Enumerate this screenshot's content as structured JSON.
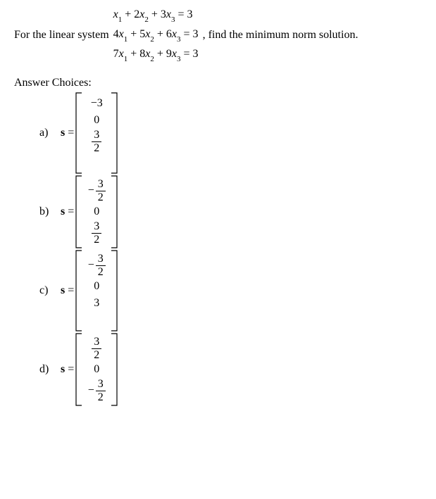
{
  "question": {
    "left_text": "For the linear system ",
    "right_text": ", find the minimum norm solution.",
    "equations": [
      {
        "vars": [
          "x",
          "x",
          "x"
        ],
        "subs": [
          "1",
          "2",
          "3"
        ],
        "coeffs_raw": "x₁ + 2x₂ + 3x₃ = 3",
        "c1": "",
        "c2": "+ 2",
        "c3": "+ 3",
        "rhs": "3"
      },
      {
        "vars": [
          "x",
          "x",
          "x"
        ],
        "subs": [
          "1",
          "2",
          "3"
        ],
        "coeffs_raw": "4x₁ + 5x₂ + 6x₃ = 3",
        "c1": "4",
        "c2": "+ 5",
        "c3": "+ 6",
        "rhs": "3"
      },
      {
        "vars": [
          "x",
          "x",
          "x"
        ],
        "subs": [
          "1",
          "2",
          "3"
        ],
        "coeffs_raw": "7x₁ + 8x₂ + 9x₃ = 3",
        "c1": "7",
        "c2": "+ 8",
        "c3": "+ 9",
        "rhs": "3"
      }
    ]
  },
  "answers_heading": "Answer Choices:",
  "choices": [
    {
      "label": "a)",
      "vector": [
        {
          "type": "plain",
          "value": "−3"
        },
        {
          "type": "plain",
          "value": "0"
        },
        {
          "type": "frac",
          "neg": false,
          "num": "3",
          "den": "2"
        }
      ],
      "trailing_blank": true
    },
    {
      "label": "b)",
      "vector": [
        {
          "type": "frac",
          "neg": true,
          "num": "3",
          "den": "2"
        },
        {
          "type": "plain",
          "value": "0"
        },
        {
          "type": "frac",
          "neg": false,
          "num": "3",
          "den": "2"
        }
      ]
    },
    {
      "label": "c)",
      "vector": [
        {
          "type": "frac",
          "neg": true,
          "num": "3",
          "den": "2"
        },
        {
          "type": "plain",
          "value": "0"
        },
        {
          "type": "plain",
          "value": "3"
        }
      ],
      "trailing_blank": true
    },
    {
      "label": "d)",
      "vector": [
        {
          "type": "frac",
          "neg": false,
          "num": "3",
          "den": "2"
        },
        {
          "type": "plain",
          "value": "0"
        },
        {
          "type": "frac",
          "neg": true,
          "num": "3",
          "den": "2"
        }
      ]
    }
  ],
  "s_symbol": "s",
  "equals": " = ",
  "bracket_color": "#000000"
}
